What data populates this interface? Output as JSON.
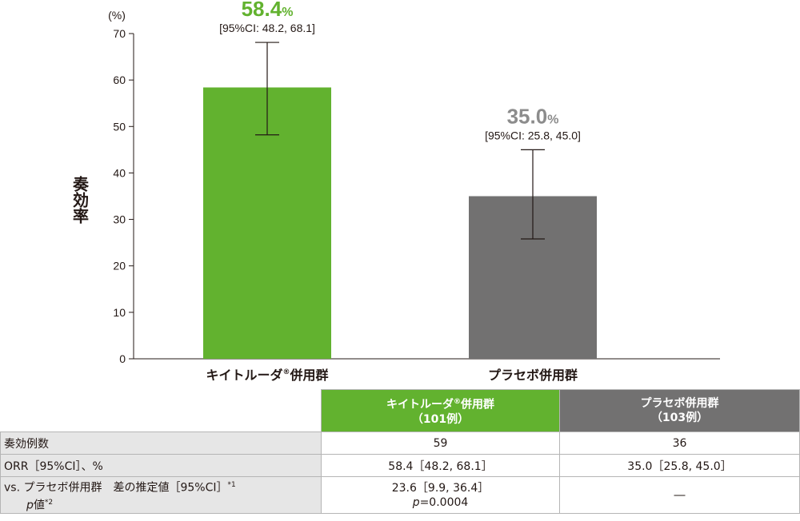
{
  "chart_data": {
    "type": "bar",
    "title": "",
    "ylabel": "奏効率",
    "yunit": "(%)",
    "ylim": [
      0,
      70
    ],
    "yticks": [
      0,
      10,
      20,
      30,
      40,
      50,
      60,
      70
    ],
    "categories": [
      "キイトルーダ®併用群",
      "プラセボ併用群"
    ],
    "values": [
      58.4,
      35.0
    ],
    "ci_low": [
      48.2,
      25.8
    ],
    "ci_high": [
      68.1,
      45.0
    ],
    "value_labels": [
      "58.4",
      "35.0"
    ],
    "value_unit": "%",
    "ci_labels": [
      "[95%CI: 48.2, 68.1]",
      "[95%CI: 25.8, 45.0]"
    ],
    "colors": [
      "#62b22f",
      "#727171"
    ],
    "label_colors": [
      "#62b22f",
      "#8c8c8c"
    ]
  },
  "table": {
    "header_keytruda_1": "キイトルーダ",
    "header_keytruda_r": "®",
    "header_keytruda_2": "併用群",
    "header_keytruda_n": "（101例）",
    "header_placebo": "プラセボ併用群",
    "header_placebo_n": "（103例）",
    "rows": [
      {
        "label": "奏効例数",
        "keytruda": "59",
        "placebo": "36"
      },
      {
        "label": "ORR［95%CI］、%",
        "keytruda": "58.4［48.2, 68.1］",
        "placebo": "35.0［25.8, 45.0］"
      }
    ],
    "row3_label_1": "vs. プラセボ併用群　差の推定値［95%CI］",
    "row3_sup_1": "*1",
    "row3_label_p": "p",
    "row3_label_2": "値",
    "row3_sup_2": "*2",
    "row3_keytruda_1": "23.6［9.9, 36.4］",
    "row3_keytruda_p": "p",
    "row3_keytruda_2": "=0.0004",
    "row3_placebo": "―"
  }
}
